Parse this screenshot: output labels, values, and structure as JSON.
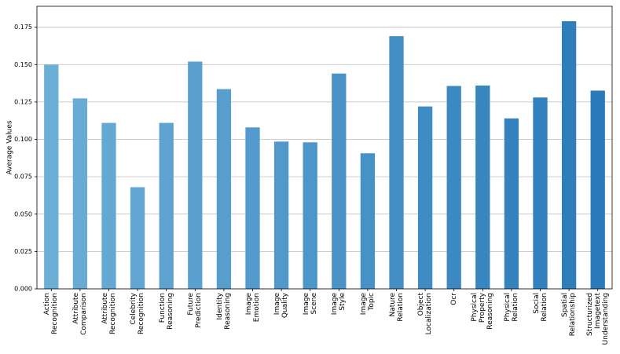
{
  "chart_data": {
    "type": "bar",
    "ylabel": "Average Values",
    "categories": [
      "Action\nRecognition",
      "Attribute\nComparison",
      "Attribute\nRecognition",
      "Celebrity\nRecognition",
      "Function\nReasoning",
      "Future\nPrediction",
      "Identity\nReasoning",
      "Image\nEmotion",
      "Image\nQuality",
      "Image\nScene",
      "Image\nStyle",
      "Image\nTopic",
      "Nature\nRelation",
      "Object\nLocalization",
      "Ocr",
      "Physical\nProperty\nReasoning",
      "Physical\nRelation",
      "Social\nRelation",
      "Spatial\nRelationship",
      "Structurized\nImagetext\nUnderstanding"
    ],
    "values": [
      0.15,
      0.1274,
      0.111,
      0.068,
      0.111,
      0.152,
      0.1336,
      0.108,
      0.0985,
      0.098,
      0.144,
      0.0907,
      0.169,
      0.122,
      0.1357,
      0.136,
      0.114,
      0.128,
      0.179,
      0.1326
    ],
    "colors": [
      "#6baed6",
      "#68abd5",
      "#64a9d3",
      "#61a6d2",
      "#5ea3d0",
      "#5aa1cf",
      "#579ecd",
      "#539bcc",
      "#5099ca",
      "#4d96c9",
      "#4993c7",
      "#4691c6",
      "#438ec4",
      "#3f8bc3",
      "#3c89c1",
      "#3886c0",
      "#3583be",
      "#3280bd",
      "#2e7ebb",
      "#2b7bba"
    ],
    "ylim": [
      0,
      0.189
    ],
    "yticks": [
      {
        "value": 0,
        "label": "0.000"
      },
      {
        "value": 0.025,
        "label": "0.025"
      },
      {
        "value": 0.05,
        "label": "0.050"
      },
      {
        "value": 0.075,
        "label": "0.075"
      },
      {
        "value": 0.1,
        "label": "0.100"
      },
      {
        "value": 0.125,
        "label": "0.125"
      },
      {
        "value": 0.15,
        "label": "0.150"
      },
      {
        "value": 0.175,
        "label": "0.175"
      }
    ],
    "grid": true
  }
}
